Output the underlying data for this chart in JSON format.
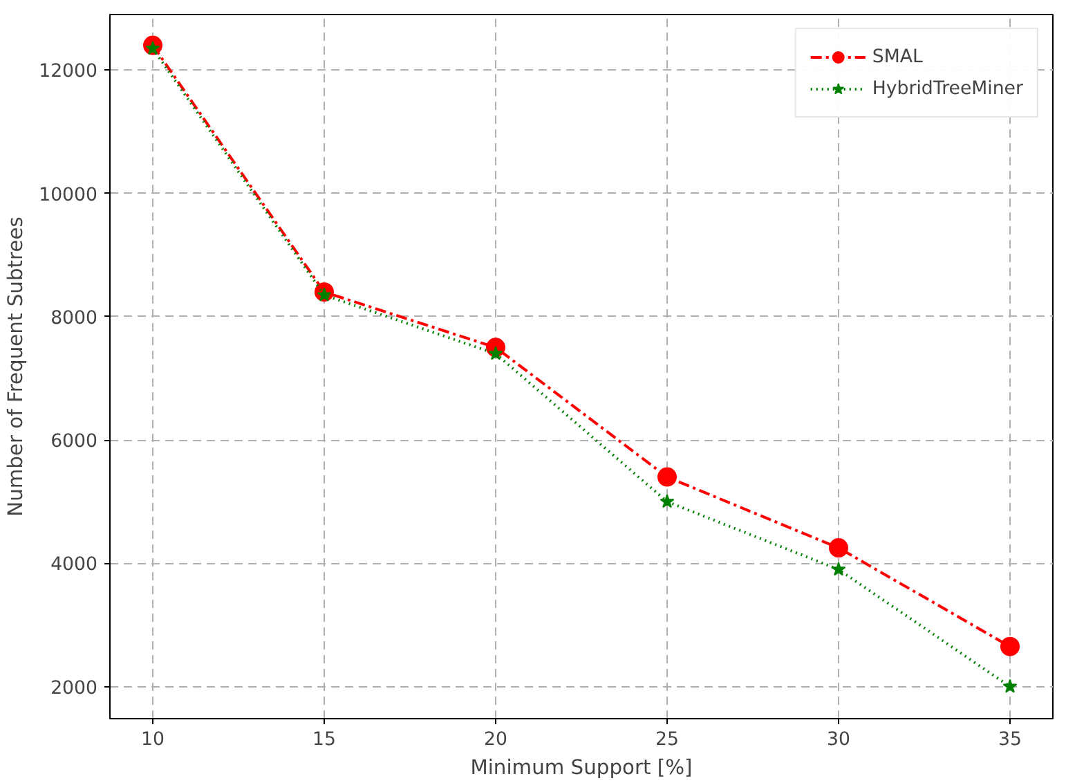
{
  "chart_data": {
    "type": "line",
    "xlabel": "Minimum Support [%]",
    "ylabel": "Number of Frequent Subtrees",
    "x": [
      10,
      15,
      20,
      25,
      30,
      35
    ],
    "series": [
      {
        "name": "SMAL",
        "color": "#ff0000",
        "values": [
          12400,
          8400,
          7500,
          5400,
          4250,
          2650
        ],
        "marker": "circle",
        "line_style": "dashdot"
      },
      {
        "name": "HybridTreeMiner",
        "color": "#008000",
        "values": [
          12350,
          8350,
          7400,
          5000,
          3900,
          2000
        ],
        "marker": "star",
        "line_style": "dotted"
      }
    ],
    "xlim": [
      8.75,
      36.25
    ],
    "ylim": [
      1480,
      12900
    ],
    "xticks": [
      10,
      15,
      20,
      25,
      30,
      35
    ],
    "yticks": [
      2000,
      4000,
      6000,
      8000,
      10000,
      12000
    ],
    "grid": true,
    "legend": "top right"
  }
}
